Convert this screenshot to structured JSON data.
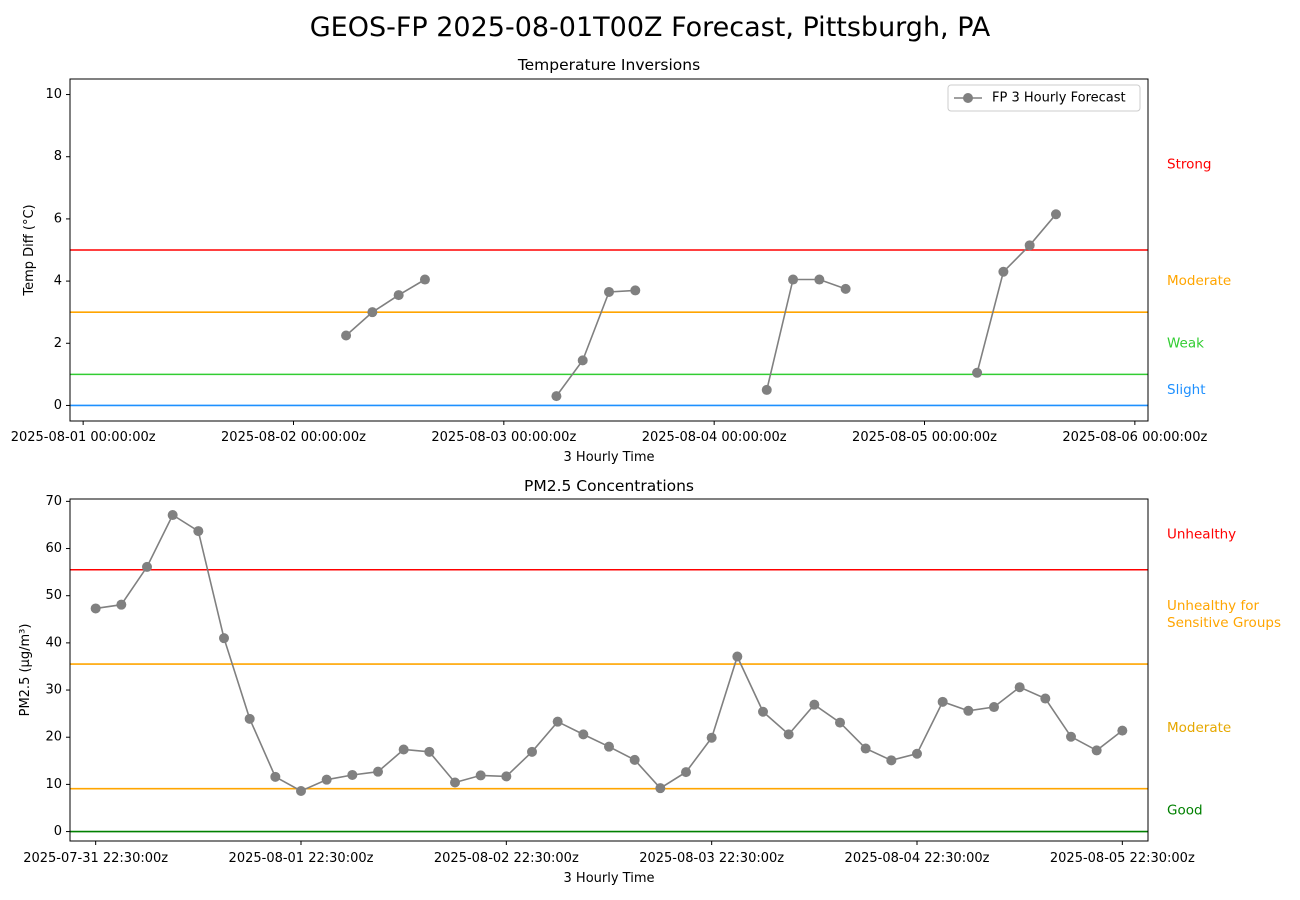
{
  "figure": {
    "title": "GEOS-FP 2025-08-01T00Z Forecast, Pittsburgh, PA"
  },
  "chart_data": [
    {
      "type": "line",
      "title": "Temperature Inversions",
      "xlabel": "3 Hourly Time",
      "ylabel": "Temp Diff (°C)",
      "ylim": [
        -0.5,
        10.5
      ],
      "yticks": [
        0,
        2,
        4,
        6,
        8,
        10
      ],
      "xlim": [
        "2025-07-31 22:30",
        "2025-08-06 01:30"
      ],
      "xticks": [
        {
          "t": "2025-08-01 00:00",
          "label": "2025-08-01 00:00:00z"
        },
        {
          "t": "2025-08-02 00:00",
          "label": "2025-08-02 00:00:00z"
        },
        {
          "t": "2025-08-03 00:00",
          "label": "2025-08-03 00:00:00z"
        },
        {
          "t": "2025-08-04 00:00",
          "label": "2025-08-04 00:00:00z"
        },
        {
          "t": "2025-08-05 00:00",
          "label": "2025-08-05 00:00:00z"
        },
        {
          "t": "2025-08-06 00:00",
          "label": "2025-08-06 00:00:00z"
        }
      ],
      "legend": {
        "position": "top-right",
        "label": "FP 3 Hourly Forecast"
      },
      "thresholds": [
        {
          "value": 0,
          "color": "#1e90ff",
          "label": "Slight",
          "label_y": 0.5
        },
        {
          "value": 1,
          "color": "#32cd32",
          "label": "Weak",
          "label_y": 2.0
        },
        {
          "value": 3,
          "color": "#ffa500",
          "label": "Moderate",
          "label_y": 4.0
        },
        {
          "value": 5,
          "color": "#ff0000",
          "label": "Strong",
          "label_y": 7.75
        }
      ],
      "series": [
        {
          "color": "#808080",
          "segments": [
            [
              {
                "t": "2025-08-02 06:00",
                "y": 2.25
              },
              {
                "t": "2025-08-02 09:00",
                "y": 3.0
              },
              {
                "t": "2025-08-02 12:00",
                "y": 3.55
              },
              {
                "t": "2025-08-02 15:00",
                "y": 4.05
              }
            ],
            [
              {
                "t": "2025-08-03 06:00",
                "y": 0.3
              },
              {
                "t": "2025-08-03 09:00",
                "y": 1.45
              },
              {
                "t": "2025-08-03 12:00",
                "y": 3.65
              },
              {
                "t": "2025-08-03 15:00",
                "y": 3.7
              }
            ],
            [
              {
                "t": "2025-08-04 06:00",
                "y": 0.5
              },
              {
                "t": "2025-08-04 09:00",
                "y": 4.05
              },
              {
                "t": "2025-08-04 12:00",
                "y": 4.05
              },
              {
                "t": "2025-08-04 15:00",
                "y": 3.75
              }
            ],
            [
              {
                "t": "2025-08-05 06:00",
                "y": 1.05
              },
              {
                "t": "2025-08-05 09:00",
                "y": 4.3
              },
              {
                "t": "2025-08-05 12:00",
                "y": 5.15
              },
              {
                "t": "2025-08-05 15:00",
                "y": 6.15
              }
            ]
          ]
        }
      ]
    },
    {
      "type": "line",
      "title": "PM2.5 Concentrations",
      "xlabel": "3 Hourly Time",
      "ylabel": "PM2.5 (µg/m³)",
      "ylim": [
        -2,
        70.5
      ],
      "yticks": [
        0,
        10,
        20,
        30,
        40,
        50,
        60,
        70
      ],
      "xlim": [
        "2025-07-31 19:30",
        "2025-08-06 01:30"
      ],
      "xticks": [
        {
          "t": "2025-07-31 22:30",
          "label": "2025-07-31 22:30:00z"
        },
        {
          "t": "2025-08-01 22:30",
          "label": "2025-08-01 22:30:00z"
        },
        {
          "t": "2025-08-02 22:30",
          "label": "2025-08-02 22:30:00z"
        },
        {
          "t": "2025-08-03 22:30",
          "label": "2025-08-03 22:30:00z"
        },
        {
          "t": "2025-08-04 22:30",
          "label": "2025-08-04 22:30:00z"
        },
        {
          "t": "2025-08-05 22:30",
          "label": "2025-08-05 22:30:00z"
        }
      ],
      "thresholds": [
        {
          "value": 0,
          "color": "#008000",
          "label": "Good",
          "label_y": 4.5
        },
        {
          "value": 9.1,
          "color": "#ffa500",
          "label": "Moderate",
          "label_y": 22
        },
        {
          "value": 35.5,
          "color": "#ffa500",
          "label": "Unhealthy for\nSensitive Groups",
          "label_y": 46
        },
        {
          "value": 55.5,
          "color": "#ff0000",
          "label": "Unhealthy",
          "label_y": 63
        }
      ],
      "threshold_label_colors": [
        "#008000",
        "#e6a800",
        "#ffa500",
        "#ff0000"
      ],
      "series": [
        {
          "color": "#808080",
          "start": "2025-07-31 22:30",
          "step_hours": 3,
          "values": [
            47.3,
            48.1,
            56.1,
            67.1,
            63.7,
            41.0,
            23.9,
            11.6,
            8.6,
            11.0,
            12.0,
            12.7,
            17.4,
            16.9,
            10.4,
            11.9,
            11.7,
            16.9,
            23.3,
            20.6,
            18.0,
            15.2,
            9.2,
            12.6,
            19.9,
            37.1,
            25.4,
            20.6,
            26.9,
            23.1,
            17.6,
            15.1,
            16.5,
            27.5,
            25.6,
            26.4,
            30.6,
            28.2,
            20.1,
            17.2,
            21.4
          ]
        }
      ]
    }
  ]
}
